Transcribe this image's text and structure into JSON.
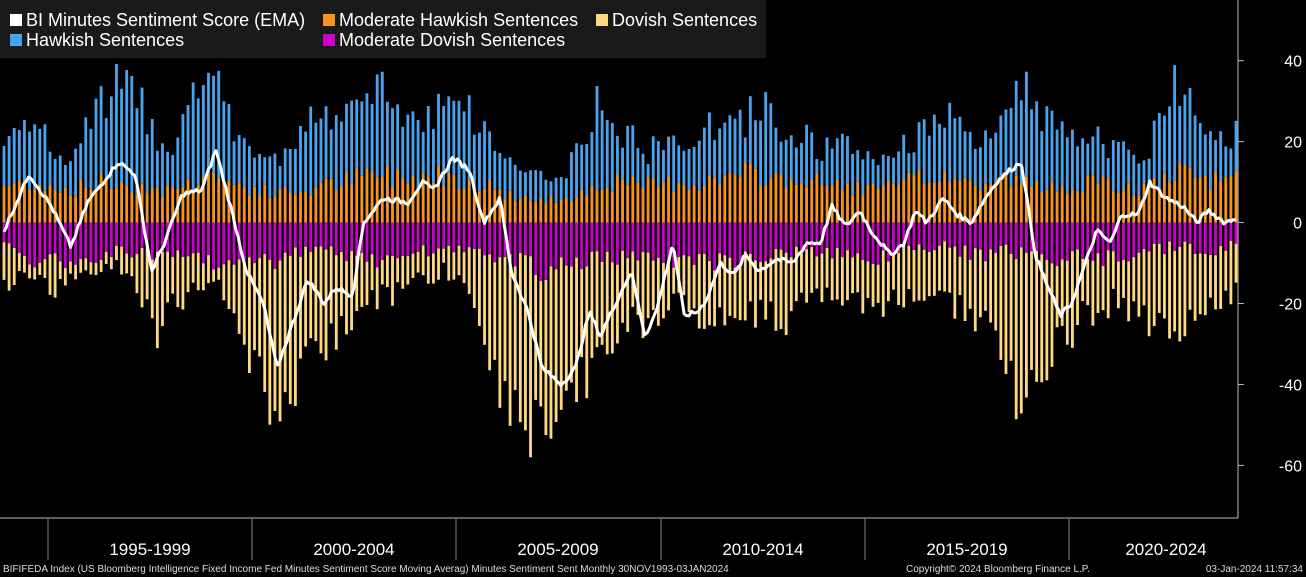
{
  "chart_data": {
    "type": "bar",
    "title": "",
    "xlabel": "",
    "ylabel": "",
    "ylim": [
      -73,
      55
    ],
    "y_ticks": [
      40,
      20,
      0,
      -20,
      -40,
      -60
    ],
    "y_tick_labels": [
      "40",
      "20",
      "0",
      "-20",
      "-40",
      "-60"
    ],
    "x_period_labels": [
      "1995-1999",
      "2000-2004",
      "2005-2009",
      "2010-2014",
      "2015-2019",
      "2020-2024"
    ],
    "x_start": "1993-11",
    "x_end": "2023-12",
    "frequency": "8 meetings per year",
    "stacked": true,
    "legend_position": "top-left",
    "grid": false,
    "series": [
      {
        "key": "ema",
        "name": "BI Minutes Sentiment Score (EMA)",
        "render": "line",
        "color": "#ffffff"
      },
      {
        "key": "hawk",
        "name": "Hawkish Sentences",
        "render": "bar",
        "color": "#4aa3ef"
      },
      {
        "key": "modhawk",
        "name": "Moderate Hawkish Sentences",
        "render": "bar",
        "color": "#f7941d"
      },
      {
        "key": "dove",
        "name": "Dovish Sentences",
        "render": "bar",
        "color": "#fed981"
      },
      {
        "key": "moddove",
        "name": "Moderate Dovish Sentences",
        "render": "bar",
        "color": "#cc00cc"
      }
    ],
    "anchors": {
      "ema": [
        [
          1993.9,
          -2
        ],
        [
          1994.8,
          12
        ],
        [
          1995.6,
          4
        ],
        [
          1996.3,
          -6
        ],
        [
          1996.9,
          5
        ],
        [
          1998.0,
          15
        ],
        [
          1998.6,
          12
        ],
        [
          1999.2,
          -12
        ],
        [
          1999.6,
          -6
        ],
        [
          2000.3,
          7
        ],
        [
          2001.0,
          8
        ],
        [
          2001.5,
          18
        ],
        [
          2002.1,
          2
        ],
        [
          2002.6,
          -12
        ],
        [
          2003.2,
          -20
        ],
        [
          2003.7,
          -36
        ],
        [
          2004.3,
          -24
        ],
        [
          2004.8,
          -14
        ],
        [
          2005.4,
          -20
        ],
        [
          2005.8,
          -16
        ],
        [
          2006.4,
          -18
        ],
        [
          2006.8,
          0
        ],
        [
          2007.5,
          6
        ],
        [
          2008.4,
          5
        ],
        [
          2008.9,
          10
        ],
        [
          2009.3,
          8
        ],
        [
          2010.0,
          16
        ],
        [
          2010.6,
          13
        ],
        [
          2011.1,
          0
        ],
        [
          2011.7,
          6
        ],
        [
          2012.1,
          -12
        ],
        [
          2012.7,
          -22
        ],
        [
          2013.2,
          -36
        ],
        [
          2013.9,
          -40
        ],
        [
          2014.4,
          -36
        ],
        [
          2014.9,
          -22
        ],
        [
          2015.3,
          -28
        ],
        [
          2015.7,
          -22
        ],
        [
          2016.4,
          -12
        ],
        [
          2016.9,
          -28
        ],
        [
          2017.3,
          -22
        ],
        [
          2017.9,
          -5
        ],
        [
          2018.3,
          -23
        ],
        [
          2018.8,
          -22
        ],
        [
          2019.1,
          -19
        ],
        [
          2019.6,
          -10
        ],
        [
          2020.1,
          -13
        ],
        [
          2020.5,
          -8
        ],
        [
          2021.0,
          -12
        ],
        [
          2021.6,
          -9
        ],
        [
          2022.2,
          -10
        ],
        [
          2022.7,
          -5
        ],
        [
          2023.2,
          -5
        ],
        [
          2023.6,
          4
        ],
        [
          2024.1,
          -1
        ],
        [
          2024.6,
          3
        ],
        [
          2025.0,
          -2
        ],
        [
          2025.7,
          -8
        ],
        [
          2026.2,
          -5
        ],
        [
          2026.6,
          3
        ],
        [
          2027.0,
          0
        ],
        [
          2027.6,
          6
        ],
        [
          2028.1,
          2
        ],
        [
          2028.6,
          0
        ],
        [
          2029.1,
          6
        ],
        [
          2029.5,
          10
        ],
        [
          2030.0,
          13
        ],
        [
          2030.4,
          15
        ],
        [
          2030.9,
          -8
        ],
        [
          2031.3,
          -15
        ],
        [
          2031.8,
          -23
        ],
        [
          2032.2,
          -20
        ],
        [
          2032.6,
          -12
        ],
        [
          2033.1,
          -2
        ],
        [
          2033.6,
          -5
        ],
        [
          2034.0,
          2
        ],
        [
          2034.6,
          2
        ],
        [
          2035.0,
          10
        ],
        [
          2035.6,
          6
        ],
        [
          2036.2,
          4
        ],
        [
          2036.7,
          0
        ],
        [
          2037.1,
          3
        ],
        [
          2037.7,
          0
        ],
        [
          2038.1,
          1
        ]
      ],
      "hawk": [
        [
          1993.9,
          19
        ],
        [
          1994.6,
          30
        ],
        [
          1995.3,
          22
        ],
        [
          1996.0,
          14
        ],
        [
          1996.7,
          22
        ],
        [
          1997.3,
          30
        ],
        [
          1998.0,
          35
        ],
        [
          1998.7,
          33
        ],
        [
          1999.3,
          22
        ],
        [
          2000.0,
          20
        ],
        [
          2000.6,
          30
        ],
        [
          2001.3,
          40
        ],
        [
          2001.9,
          26
        ],
        [
          2002.5,
          22
        ],
        [
          2003.1,
          17
        ],
        [
          2003.7,
          15
        ],
        [
          2004.3,
          22
        ],
        [
          2005.0,
          28
        ],
        [
          2005.7,
          24
        ],
        [
          2006.3,
          30
        ],
        [
          2006.9,
          30
        ],
        [
          2007.5,
          34
        ],
        [
          2008.1,
          28
        ],
        [
          2008.8,
          26
        ],
        [
          2009.5,
          30
        ],
        [
          2010.1,
          36
        ],
        [
          2010.7,
          26
        ],
        [
          2011.3,
          22
        ],
        [
          2011.9,
          16
        ],
        [
          2012.5,
          14
        ],
        [
          2013.1,
          12
        ],
        [
          2013.8,
          10
        ],
        [
          2014.5,
          18
        ],
        [
          2015.1,
          30
        ],
        [
          2015.8,
          24
        ],
        [
          2016.4,
          22
        ],
        [
          2017.0,
          18
        ],
        [
          2017.6,
          20
        ],
        [
          2018.3,
          20
        ],
        [
          2018.9,
          24
        ],
        [
          2019.5,
          24
        ],
        [
          2020.1,
          24
        ],
        [
          2020.8,
          28
        ],
        [
          2021.4,
          30
        ],
        [
          2022.0,
          22
        ],
        [
          2022.6,
          22
        ],
        [
          2023.2,
          18
        ],
        [
          2023.8,
          20
        ],
        [
          2024.5,
          18
        ],
        [
          2025.1,
          16
        ],
        [
          2025.8,
          18
        ],
        [
          2026.4,
          20
        ],
        [
          2027.0,
          26
        ],
        [
          2027.6,
          28
        ],
        [
          2028.3,
          22
        ],
        [
          2029.0,
          20
        ],
        [
          2029.6,
          22
        ],
        [
          2030.3,
          38
        ],
        [
          2030.9,
          30
        ],
        [
          2031.6,
          24
        ],
        [
          2032.2,
          20
        ],
        [
          2032.8,
          24
        ],
        [
          2033.4,
          20
        ],
        [
          2034.1,
          18
        ],
        [
          2034.7,
          14
        ],
        [
          2035.3,
          26
        ],
        [
          2035.9,
          36
        ],
        [
          2036.6,
          30
        ],
        [
          2037.2,
          24
        ],
        [
          2037.8,
          22
        ],
        [
          2038.1,
          24
        ]
      ],
      "modhawk": [
        [
          1993.9,
          9
        ],
        [
          1995.0,
          10
        ],
        [
          1996.2,
          8
        ],
        [
          1997.5,
          10
        ],
        [
          1998.7,
          9
        ],
        [
          2000.0,
          8
        ],
        [
          2001.2,
          12
        ],
        [
          2002.4,
          9
        ],
        [
          2003.6,
          7
        ],
        [
          2004.8,
          8
        ],
        [
          2006.0,
          10
        ],
        [
          2007.2,
          12
        ],
        [
          2008.4,
          11
        ],
        [
          2009.6,
          12
        ],
        [
          2010.8,
          10
        ],
        [
          2012.0,
          7
        ],
        [
          2013.2,
          5
        ],
        [
          2014.4,
          7
        ],
        [
          2015.6,
          10
        ],
        [
          2016.8,
          9
        ],
        [
          2018.0,
          10
        ],
        [
          2019.2,
          10
        ],
        [
          2020.4,
          12
        ],
        [
          2021.6,
          11
        ],
        [
          2022.8,
          10
        ],
        [
          2024.0,
          9
        ],
        [
          2025.2,
          8
        ],
        [
          2026.4,
          10
        ],
        [
          2027.6,
          12
        ],
        [
          2028.8,
          9
        ],
        [
          2030.0,
          11
        ],
        [
          2031.2,
          8
        ],
        [
          2032.4,
          10
        ],
        [
          2033.6,
          9
        ],
        [
          2034.8,
          8
        ],
        [
          2036.0,
          12
        ],
        [
          2037.2,
          10
        ],
        [
          2038.1,
          12
        ]
      ],
      "moddove": [
        [
          1993.9,
          -6
        ],
        [
          1995.0,
          -9
        ],
        [
          1996.2,
          -10
        ],
        [
          1997.5,
          -8
        ],
        [
          1998.7,
          -7
        ],
        [
          2000.0,
          -9
        ],
        [
          2001.2,
          -10
        ],
        [
          2002.4,
          -8
        ],
        [
          2003.6,
          -11
        ],
        [
          2004.8,
          -6
        ],
        [
          2006.0,
          -8
        ],
        [
          2007.2,
          -10
        ],
        [
          2008.4,
          -8
        ],
        [
          2009.6,
          -6
        ],
        [
          2010.8,
          -8
        ],
        [
          2012.0,
          -9
        ],
        [
          2013.2,
          -12
        ],
        [
          2014.4,
          -10
        ],
        [
          2015.6,
          -9
        ],
        [
          2016.8,
          -8
        ],
        [
          2018.0,
          -9
        ],
        [
          2019.2,
          -10
        ],
        [
          2020.4,
          -9
        ],
        [
          2021.6,
          -8
        ],
        [
          2022.8,
          -7
        ],
        [
          2024.0,
          -8
        ],
        [
          2025.2,
          -9
        ],
        [
          2026.4,
          -7
        ],
        [
          2027.6,
          -6
        ],
        [
          2028.8,
          -8
        ],
        [
          2030.0,
          -7
        ],
        [
          2031.2,
          -9
        ],
        [
          2032.4,
          -8
        ],
        [
          2033.6,
          -9
        ],
        [
          2034.8,
          -7
        ],
        [
          2036.0,
          -6
        ],
        [
          2037.2,
          -7
        ],
        [
          2038.1,
          -5
        ]
      ],
      "dove": [
        [
          1993.9,
          -16
        ],
        [
          1994.8,
          -12
        ],
        [
          1995.6,
          -17
        ],
        [
          1996.4,
          -14
        ],
        [
          1997.2,
          -10
        ],
        [
          1998.0,
          -10
        ],
        [
          1998.8,
          -18
        ],
        [
          1999.4,
          -32
        ],
        [
          2000.0,
          -20
        ],
        [
          2000.7,
          -18
        ],
        [
          2001.4,
          -12
        ],
        [
          2002.0,
          -20
        ],
        [
          2002.6,
          -30
        ],
        [
          2003.2,
          -44
        ],
        [
          2003.8,
          -52
        ],
        [
          2004.4,
          -42
        ],
        [
          2005.0,
          -34
        ],
        [
          2005.7,
          -28
        ],
        [
          2006.3,
          -26
        ],
        [
          2007.0,
          -20
        ],
        [
          2007.6,
          -18
        ],
        [
          2008.3,
          -18
        ],
        [
          2009.0,
          -14
        ],
        [
          2009.7,
          -12
        ],
        [
          2010.4,
          -15
        ],
        [
          2011.0,
          -28
        ],
        [
          2011.6,
          -40
        ],
        [
          2012.2,
          -50
        ],
        [
          2012.8,
          -54
        ],
        [
          2013.4,
          -50
        ],
        [
          2014.0,
          -48
        ],
        [
          2014.6,
          -40
        ],
        [
          2015.2,
          -38
        ],
        [
          2015.8,
          -30
        ],
        [
          2016.4,
          -24
        ],
        [
          2017.0,
          -26
        ],
        [
          2017.6,
          -22
        ],
        [
          2018.2,
          -20
        ],
        [
          2018.8,
          -26
        ],
        [
          2019.4,
          -26
        ],
        [
          2020.0,
          -22
        ],
        [
          2020.6,
          -24
        ],
        [
          2021.2,
          -22
        ],
        [
          2021.8,
          -26
        ],
        [
          2022.4,
          -22
        ],
        [
          2023.0,
          -20
        ],
        [
          2023.6,
          -18
        ],
        [
          2024.2,
          -18
        ],
        [
          2024.8,
          -22
        ],
        [
          2025.4,
          -22
        ],
        [
          2026.0,
          -18
        ],
        [
          2026.6,
          -22
        ],
        [
          2027.2,
          -18
        ],
        [
          2027.8,
          -20
        ],
        [
          2028.4,
          -22
        ],
        [
          2029.0,
          -26
        ],
        [
          2029.6,
          -32
        ],
        [
          2030.2,
          -44
        ],
        [
          2030.8,
          -38
        ],
        [
          2031.4,
          -34
        ],
        [
          2032.0,
          -30
        ],
        [
          2032.6,
          -24
        ],
        [
          2033.2,
          -22
        ],
        [
          2033.8,
          -20
        ],
        [
          2034.4,
          -22
        ],
        [
          2035.0,
          -26
        ],
        [
          2035.6,
          -28
        ],
        [
          2036.2,
          -26
        ],
        [
          2036.8,
          -22
        ],
        [
          2037.4,
          -20
        ],
        [
          2038.1,
          -18
        ]
      ]
    }
  },
  "footer": {
    "left": "BIFIFEDA Index (US Bloomberg Intelligence Fixed Income Fed Minutes Sentiment Score Moving Averag) Minutes Sentiment Sent  Monthly 30NOV1993-03JAN2024",
    "center": "Copyright© 2024 Bloomberg Finance L.P.",
    "right": "03-Jan-2024 11:57:34"
  }
}
